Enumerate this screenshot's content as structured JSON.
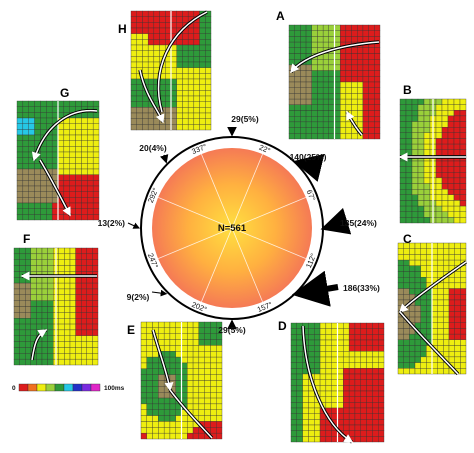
{
  "colors": {
    "red": "#dd1c1c",
    "orange": "#f07020",
    "yellow": "#eeee10",
    "lime": "#9ad03a",
    "green": "#2e9a3a",
    "brown": "#9a8a5a",
    "cyan": "#26c8e6",
    "blue": "#2330c8",
    "purple": "#7a2ae0",
    "magenta": "#e026c8",
    "grid": "#333333"
  },
  "panels": [
    {
      "letter": "H",
      "pattern": "H"
    },
    {
      "letter": "A",
      "pattern": "A"
    },
    {
      "letter": "B",
      "pattern": "B"
    },
    {
      "letter": "C",
      "pattern": "C"
    },
    {
      "letter": "D",
      "pattern": "D"
    },
    {
      "letter": "E",
      "pattern": "E"
    },
    {
      "letter": "F",
      "pattern": "F"
    },
    {
      "letter": "G",
      "pattern": "G"
    }
  ],
  "compass": {
    "center_label": "N=561",
    "angles": [
      "22°",
      "67°",
      "112°",
      "157°",
      "202°",
      "247°",
      "292°",
      "337°"
    ],
    "directions": [
      {
        "label": "29(5%)",
        "pct": 5
      },
      {
        "label": "140(25%)",
        "pct": 25
      },
      {
        "label": "135(24%)",
        "pct": 24
      },
      {
        "label": "186(33%)",
        "pct": 33
      },
      {
        "label": "29(5%)",
        "pct": 5
      },
      {
        "label": "9(2%)",
        "pct": 2
      },
      {
        "label": "13(2%)",
        "pct": 2
      },
      {
        "label": "20(4%)",
        "pct": 4
      }
    ]
  },
  "scale": {
    "min_label": "0",
    "max_label": "100ms",
    "swatches": [
      "red",
      "orange",
      "yellow",
      "lime",
      "green",
      "cyan",
      "blue",
      "purple",
      "magenta"
    ]
  }
}
